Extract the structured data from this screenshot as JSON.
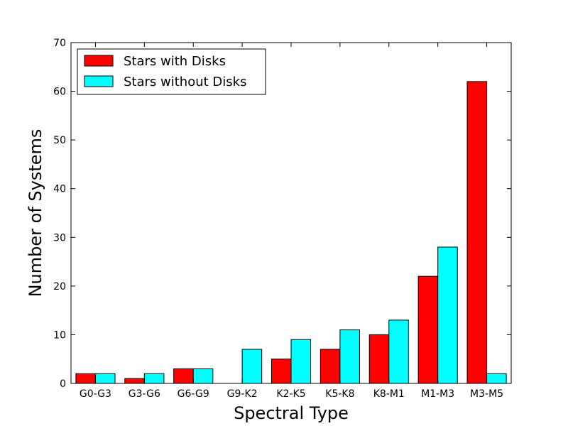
{
  "chart_data": {
    "type": "bar",
    "title": "",
    "xlabel": "Spectral Type",
    "ylabel": "Number of Systems",
    "categories": [
      "G0-G3",
      "G3-G6",
      "G6-G9",
      "G9-K2",
      "K2-K5",
      "K5-K8",
      "K8-M1",
      "M1-M3",
      "M3-M5"
    ],
    "series": [
      {
        "name": "Stars with Disks",
        "color": "#ff0000",
        "values": [
          2,
          1,
          3,
          0,
          5,
          7,
          10,
          22,
          62
        ]
      },
      {
        "name": "Stars without Disks",
        "color": "#00ffff",
        "values": [
          2,
          2,
          3,
          7,
          9,
          11,
          13,
          28,
          2
        ]
      }
    ],
    "ylim": [
      0,
      70
    ],
    "yticks": [
      0,
      10,
      20,
      30,
      40,
      50,
      60,
      70
    ],
    "grid": false,
    "legend_position": "top-left"
  }
}
